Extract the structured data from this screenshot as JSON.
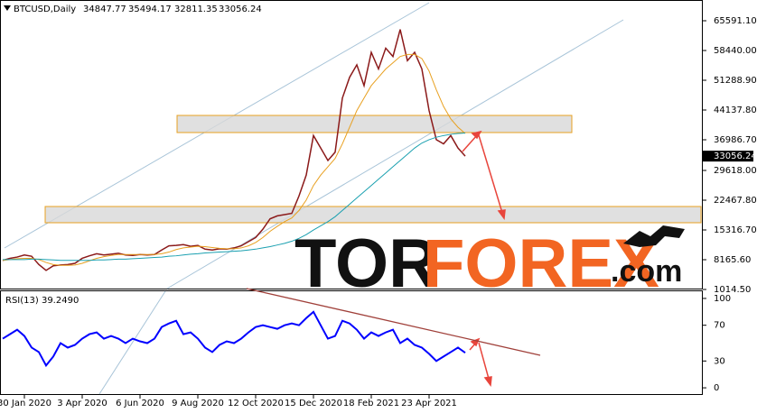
{
  "chart_data": [
    {
      "type": "line",
      "title": "BTCUSD,Daily",
      "ohlc": [
        34847.77,
        35494.17,
        32811.35,
        33056.24
      ],
      "categories": [
        null,
        null,
        null,
        "30 Jan 2020",
        null,
        null,
        null,
        null,
        null,
        null,
        null,
        "3 Apr 2020",
        null,
        null,
        null,
        null,
        null,
        null,
        null,
        "6 Jun 2020",
        null,
        null,
        null,
        null,
        null,
        null,
        null,
        "9 Aug 2020",
        null,
        null,
        null,
        null,
        null,
        null,
        null,
        "12 Oct 2020",
        null,
        null,
        null,
        null,
        null,
        null,
        null,
        "15 Dec 2020",
        null,
        null,
        null,
        null,
        null,
        null,
        null,
        "18 Feb 2021",
        null,
        null,
        null,
        null,
        null,
        null,
        null,
        "23 Apr 2021",
        null,
        null,
        null,
        null,
        null
      ],
      "series": [
        {
          "color": "#8b1a1a",
          "values": [
            8000,
            8500,
            8800,
            9300,
            9000,
            7000,
            5600,
            6700,
            6900,
            7000,
            7300,
            8500,
            9100,
            9600,
            9300,
            9500,
            9700,
            9300,
            9200,
            9400,
            9300,
            9400,
            10500,
            11500,
            11600,
            11800,
            11400,
            11600,
            10700,
            10500,
            10800,
            10700,
            11000,
            11500,
            12500,
            13500,
            15500,
            18000,
            18700,
            19000,
            19300,
            23500,
            28500,
            38000,
            35000,
            32000,
            34000,
            47000,
            52000,
            55000,
            50000,
            58000,
            54000,
            59000,
            57000,
            63500,
            56000,
            58000,
            54000,
            44000,
            37000,
            36000,
            38000,
            35000,
            33056.24
          ]
        },
        {
          "color": "#e8a020",
          "values": [
            8000,
            8200,
            8400,
            8500,
            8500,
            8200,
            7500,
            7000,
            6800,
            6800,
            6900,
            7300,
            7900,
            8500,
            8900,
            9200,
            9400,
            9400,
            9400,
            9400,
            9400,
            9400,
            9600,
            10000,
            10600,
            11000,
            11200,
            11400,
            11300,
            11100,
            10900,
            10800,
            10800,
            11000,
            11500,
            12300,
            13500,
            15000,
            16200,
            17300,
            18200,
            20000,
            22500,
            26000,
            28500,
            30500,
            32500,
            36000,
            40000,
            44000,
            47000,
            50000,
            52000,
            54000,
            55500,
            57000,
            57500,
            57500,
            56500,
            53500,
            49000,
            45000,
            42000,
            40000,
            38500
          ]
        },
        {
          "color": "#1aa0b0",
          "values": [
            8200,
            8200,
            8200,
            8200,
            8300,
            8300,
            8200,
            8100,
            8000,
            8000,
            8000,
            8000,
            8000,
            8100,
            8100,
            8200,
            8300,
            8300,
            8400,
            8500,
            8600,
            8700,
            8800,
            9000,
            9100,
            9300,
            9500,
            9600,
            9800,
            9900,
            10000,
            10100,
            10200,
            10300,
            10500,
            10700,
            11000,
            11300,
            11700,
            12100,
            12600,
            13300,
            14200,
            15300,
            16300,
            17300,
            18500,
            20000,
            21500,
            23000,
            24500,
            26000,
            27500,
            29000,
            30500,
            32000,
            33500,
            35000,
            36200,
            37000,
            37600,
            38000,
            38300,
            38500,
            38600
          ]
        }
      ],
      "ylim": [
        798,
        70575
      ],
      "yticks": [
        {
          "value": 65591.1,
          "label": "65591.10"
        },
        {
          "value": 58440,
          "label": "58440.00"
        },
        {
          "value": 51288.9,
          "label": "51288.90"
        },
        {
          "value": 44137.8,
          "label": "44137.80"
        },
        {
          "value": 36986.7,
          "label": "36986.70"
        },
        {
          "value": 29618,
          "label": "29618.00"
        },
        {
          "value": 22467.8,
          "label": "22467.80"
        },
        {
          "value": 15316.7,
          "label": "15316.70"
        },
        {
          "value": 8165.6,
          "label": "8165.60"
        },
        {
          "value": 1014.5,
          "label": "1014.50"
        }
      ]
    },
    {
      "type": "line",
      "title": "RSI(13) 39.2490",
      "series": [
        {
          "color": "#0000ff",
          "values": [
            55,
            60,
            65,
            58,
            45,
            40,
            25,
            35,
            50,
            45,
            48,
            55,
            60,
            62,
            55,
            58,
            55,
            50,
            55,
            52,
            50,
            55,
            68,
            72,
            75,
            60,
            62,
            55,
            45,
            40,
            48,
            52,
            50,
            55,
            62,
            68,
            70,
            68,
            66,
            70,
            72,
            70,
            78,
            85,
            70,
            55,
            58,
            75,
            72,
            65,
            55,
            62,
            58,
            62,
            65,
            50,
            55,
            48,
            45,
            38,
            30,
            35,
            40,
            45,
            39.249
          ]
        }
      ],
      "ylim": [
        -8,
        107
      ],
      "yticks": [
        100,
        70,
        30,
        0
      ]
    }
  ],
  "watermark": {
    "part1": "TOR",
    "part2": "FOREX",
    "part3": ".com"
  }
}
